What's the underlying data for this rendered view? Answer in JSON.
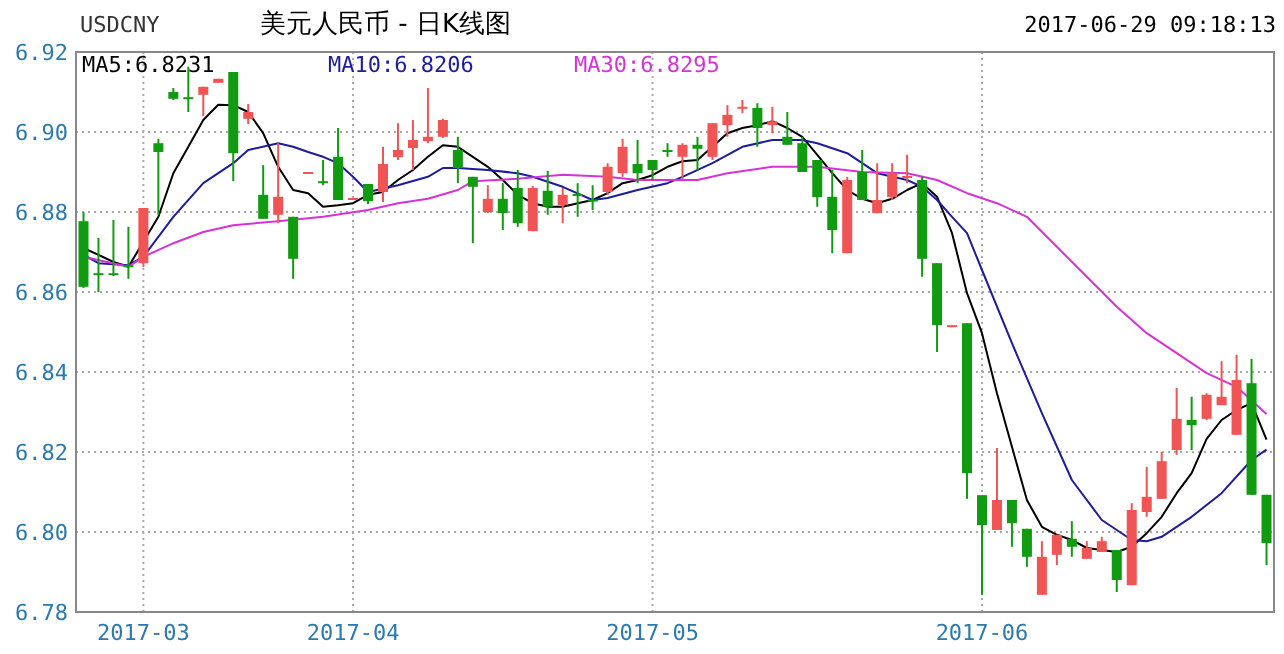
{
  "chart_data": {
    "type": "candlestick",
    "title": "美元人民币 - 日K线图",
    "annotations": [
      "USDCNY",
      "2017-06-29 09:18:13"
    ],
    "categories": [
      null,
      null,
      null,
      null,
      "2017-03",
      null,
      null,
      null,
      null,
      null,
      null,
      null,
      null,
      null,
      null,
      null,
      null,
      null,
      "2017-04",
      null,
      null,
      null,
      null,
      null,
      null,
      null,
      null,
      null,
      null,
      null,
      null,
      null,
      null,
      null,
      null,
      null,
      null,
      null,
      "2017-05",
      null,
      null,
      null,
      null,
      null,
      null,
      null,
      null,
      null,
      null,
      null,
      null,
      null,
      null,
      null,
      null,
      null,
      null,
      null,
      null,
      null,
      "2017-06",
      null,
      null,
      null,
      null,
      null,
      null,
      null,
      null,
      null,
      null,
      null,
      null,
      null,
      null,
      null,
      null,
      null,
      null,
      null
    ],
    "ohlc": [
      [
        6.8777,
        6.88,
        6.861,
        6.8613
      ],
      [
        6.8647,
        6.8735,
        6.86,
        6.8645
      ],
      [
        6.8647,
        6.878,
        6.864,
        6.8645
      ],
      [
        6.8667,
        6.8763,
        6.8633,
        6.8663
      ],
      [
        6.8672,
        6.881,
        6.8663,
        6.881
      ],
      [
        6.8972,
        6.8983,
        6.8793,
        6.895
      ],
      [
        6.91,
        6.911,
        6.908,
        6.9083
      ],
      [
        6.9087,
        6.9163,
        6.905,
        6.9083
      ],
      [
        6.9093,
        6.9113,
        6.904,
        6.9113
      ],
      [
        6.9123,
        6.9133,
        6.9123,
        6.9133
      ],
      [
        6.915,
        6.915,
        6.8877,
        6.8947
      ],
      [
        6.9033,
        6.907,
        6.902,
        6.905
      ],
      [
        6.8843,
        6.8917,
        6.8783,
        6.8783
      ],
      [
        6.8793,
        6.8972,
        6.8772,
        6.8838
      ],
      [
        6.8788,
        6.8788,
        6.8633,
        6.8683
      ],
      [
        6.8897,
        6.89,
        6.8897,
        6.89
      ],
      [
        6.8877,
        6.893,
        6.8867,
        6.8875
      ],
      [
        6.8938,
        6.901,
        6.883,
        6.883
      ],
      [
        6.8832,
        6.8835,
        6.8832,
        6.8835
      ],
      [
        6.887,
        6.887,
        6.882,
        6.8827
      ],
      [
        6.885,
        6.8963,
        6.8825,
        6.892
      ],
      [
        6.8937,
        6.9022,
        6.893,
        6.8955
      ],
      [
        6.896,
        6.903,
        6.8905,
        6.898
      ],
      [
        6.8977,
        6.911,
        6.8972,
        6.8988
      ],
      [
        6.8988,
        6.9033,
        6.8985,
        6.903
      ],
      [
        6.8955,
        6.8988,
        6.8872,
        6.891
      ],
      [
        6.8888,
        6.8888,
        6.8722,
        6.8863
      ],
      [
        6.88,
        6.8867,
        6.8797,
        6.8833
      ],
      [
        6.8833,
        6.8872,
        6.8755,
        6.8797
      ],
      [
        6.886,
        6.8905,
        6.8763,
        6.8772
      ],
      [
        6.8752,
        6.8865,
        6.8752,
        6.886
      ],
      [
        6.8853,
        6.8903,
        6.8793,
        6.8813
      ],
      [
        6.8817,
        6.886,
        6.8772,
        6.8843
      ],
      [
        6.8845,
        6.8872,
        6.8788,
        6.8842
      ],
      [
        6.8831,
        6.8867,
        6.8805,
        6.8829
      ],
      [
        6.885,
        6.8922,
        6.8843,
        6.8913
      ],
      [
        6.8897,
        6.8983,
        6.8888,
        6.8963
      ],
      [
        6.892,
        6.898,
        6.8872,
        6.8897
      ],
      [
        6.893,
        6.893,
        6.888,
        6.8905
      ],
      [
        6.8955,
        6.8972,
        6.8938,
        6.8953
      ],
      [
        6.8938,
        6.8972,
        6.888,
        6.8968
      ],
      [
        6.8968,
        6.8988,
        6.8905,
        6.8958
      ],
      [
        6.8938,
        6.9022,
        6.893,
        6.9022
      ],
      [
        6.9017,
        6.9067,
        6.8988,
        6.9043
      ],
      [
        6.9062,
        6.908,
        6.9047,
        6.9063
      ],
      [
        6.906,
        6.9072,
        6.8963,
        6.901
      ],
      [
        6.9017,
        6.9063,
        6.8997,
        6.9027
      ],
      [
        6.8988,
        6.905,
        6.8968,
        6.8968
      ],
      [
        6.8972,
        6.8988,
        6.89,
        6.89
      ],
      [
        6.893,
        6.893,
        6.8813,
        6.8837
      ],
      [
        6.8838,
        6.8905,
        6.8697,
        6.8755
      ],
      [
        6.8697,
        6.8888,
        6.8697,
        6.888
      ],
      [
        6.89,
        6.8955,
        6.883,
        6.883
      ],
      [
        6.8797,
        6.8922,
        6.8797,
        6.883
      ],
      [
        6.8837,
        6.8922,
        6.883,
        6.8897
      ],
      [
        6.8888,
        6.8943,
        6.8872,
        6.889
      ],
      [
        6.888,
        6.8888,
        6.8638,
        6.8683
      ],
      [
        6.8672,
        6.8672,
        6.845,
        6.8517
      ],
      [
        6.8515,
        6.8517,
        6.8515,
        6.8517
      ],
      [
        6.8522,
        6.8522,
        6.8083,
        6.8147
      ],
      [
        6.8092,
        6.8092,
        6.7843,
        6.8017
      ],
      [
        6.8005,
        6.821,
        6.8005,
        6.808
      ],
      [
        6.808,
        6.808,
        6.7963,
        6.8022
      ],
      [
        6.8008,
        6.8008,
        6.7913,
        6.7938
      ],
      [
        6.7843,
        6.7977,
        6.7843,
        6.7938
      ],
      [
        6.7943,
        6.7993,
        6.7917,
        6.7993
      ],
      [
        6.7983,
        6.8027,
        6.7938,
        6.7963
      ],
      [
        6.7933,
        6.7977,
        6.7933,
        6.796
      ],
      [
        6.795,
        6.7988,
        6.795,
        6.7977
      ],
      [
        6.7955,
        6.7955,
        6.785,
        6.788
      ],
      [
        6.7867,
        6.8072,
        6.7867,
        6.8055
      ],
      [
        6.805,
        6.8163,
        6.8038,
        6.8088
      ],
      [
        6.8083,
        6.82,
        6.8083,
        6.8177
      ],
      [
        6.8205,
        6.836,
        6.8193,
        6.8283
      ],
      [
        6.828,
        6.8338,
        6.8205,
        6.8267
      ],
      [
        6.8283,
        6.8347,
        6.828,
        6.8343
      ],
      [
        6.8317,
        6.8427,
        6.8317,
        6.8338
      ],
      [
        6.8243,
        6.8443,
        6.8243,
        6.838
      ],
      [
        6.8372,
        6.8433,
        6.8093,
        6.8093
      ],
      [
        6.8093,
        6.8093,
        6.7917,
        6.7972
      ]
    ],
    "colors": [
      "#119b11",
      "#119b11",
      "#119b11",
      "#119b11",
      "#f05454",
      "#119b11",
      "#119b11",
      "#119b11",
      "#f05454",
      "#f05454",
      "#119b11",
      "#f05454",
      "#119b11",
      "#f05454",
      "#119b11",
      "#f05454",
      "#119b11",
      "#119b11",
      "#f05454",
      "#119b11",
      "#f05454",
      "#f05454",
      "#f05454",
      "#f05454",
      "#f05454",
      "#119b11",
      "#119b11",
      "#f05454",
      "#119b11",
      "#119b11",
      "#f05454",
      "#119b11",
      "#f05454",
      "#119b11",
      "#119b11",
      "#f05454",
      "#f05454",
      "#119b11",
      "#119b11",
      "#119b11",
      "#f05454",
      "#119b11",
      "#f05454",
      "#f05454",
      "#f05454",
      "#119b11",
      "#f05454",
      "#119b11",
      "#119b11",
      "#119b11",
      "#119b11",
      "#f05454",
      "#119b11",
      "#f05454",
      "#f05454",
      "#f05454",
      "#119b11",
      "#119b11",
      "#f05454",
      "#119b11",
      "#119b11",
      "#f05454",
      "#119b11",
      "#119b11",
      "#f05454",
      "#f05454",
      "#119b11",
      "#f05454",
      "#f05454",
      "#119b11",
      "#f05454",
      "#f05454",
      "#f05454",
      "#f05454",
      "#119b11",
      "#f05454",
      "#f05454",
      "#f05454",
      "#119b11",
      "#119b11"
    ],
    "series": [
      {
        "name": "MA5:6.8231",
        "type": "line",
        "color": "#000000",
        "values": [
          6.871,
          6.8693,
          6.8675,
          6.8663,
          null,
          6.8788,
          6.8897,
          6.8963,
          6.903,
          6.9068,
          6.9067,
          6.905,
          6.8997,
          6.8913,
          6.8855,
          6.8847,
          6.8813,
          6.8817,
          6.8822,
          6.8843,
          6.885,
          6.888,
          6.8905,
          6.8938,
          6.8967,
          6.8963,
          6.8938,
          6.8913,
          6.888,
          6.8843,
          6.8822,
          6.8813,
          6.8813,
          6.8822,
          6.883,
          6.8847,
          6.8872,
          6.888,
          6.8892,
          6.8913,
          6.8927,
          6.893,
          6.8963,
          6.8997,
          6.901,
          6.9017,
          6.9027,
          6.901,
          6.8988,
          6.8943,
          6.8897,
          6.8855,
          6.8833,
          6.8822,
          6.8833,
          6.8855,
          6.8872,
          6.8838,
          6.8747,
          6.8597,
          6.8497,
          6.8347,
          6.8213,
          6.808,
          6.8013,
          6.7993,
          6.798,
          6.796,
          6.7955,
          6.795,
          6.7963,
          6.7997,
          6.8038,
          6.8097,
          6.8147,
          6.8233,
          6.828,
          6.8305,
          6.8322,
          6.8231
        ]
      },
      {
        "name": "MA10:6.8206",
        "type": "line",
        "color": "#1c1c9c",
        "values": [
          6.8693,
          6.8672,
          null,
          6.8667,
          6.8688,
          null,
          6.8788,
          null,
          6.8872,
          null,
          6.8922,
          6.8955,
          null,
          6.8972,
          6.8963,
          6.895,
          6.8938,
          6.8922,
          6.8888,
          6.885,
          null,
          6.8867,
          null,
          6.8888,
          6.891,
          6.891,
          null,
          6.8905,
          null,
          6.8897,
          6.8888,
          null,
          6.8863,
          null,
          6.883,
          6.8835,
          null,
          6.8855,
          null,
          6.8872,
          6.8888,
          null,
          6.8922,
          null,
          6.8963,
          null,
          6.898,
          null,
          6.898,
          6.8972,
          null,
          6.8947,
          null,
          6.8897,
          null,
          6.888,
          6.8863,
          6.883,
          6.8788,
          6.8747,
          6.8655,
          null,
          6.8472,
          null,
          6.8297,
          null,
          6.813,
          null,
          6.803,
          null,
          6.798,
          6.7977,
          6.7988,
          null,
          6.8038,
          null,
          6.8097,
          null,
          6.818,
          6.8206
        ]
      },
      {
        "name": "MA30:6.8295",
        "type": "line",
        "color": "#d633d6",
        "values": [
          6.8688,
          null,
          null,
          6.8663,
          6.8688,
          null,
          6.8722,
          null,
          6.875,
          null,
          6.8767,
          null,
          null,
          6.8777,
          null,
          null,
          6.8788,
          null,
          null,
          6.8805,
          null,
          6.8822,
          null,
          6.8833,
          null,
          6.8855,
          6.8877,
          null,
          null,
          6.8883,
          null,
          null,
          6.8893,
          null,
          null,
          6.8888,
          null,
          6.888,
          null,
          null,
          6.888,
          6.888,
          null,
          6.8897,
          null,
          null,
          6.8913,
          null,
          null,
          6.8913,
          null,
          null,
          6.89,
          null,
          null,
          6.8897,
          null,
          6.888,
          null,
          6.8847,
          null,
          6.8822,
          null,
          6.8788,
          null,
          6.8713,
          null,
          6.8638,
          null,
          6.8563,
          null,
          6.8497,
          null,
          6.8447,
          null,
          6.8397,
          null,
          6.8363,
          null,
          6.8295
        ]
      }
    ],
    "ylim": [
      6.78,
      6.92
    ],
    "yticks": [
      6.78,
      {
        "value": 6.8,
        "label": "6.80"
      },
      6.82,
      6.84,
      6.86,
      6.88,
      {
        "value": 6.9,
        "label": "6.90"
      },
      6.92
    ],
    "grid": true,
    "legend": "top left"
  }
}
